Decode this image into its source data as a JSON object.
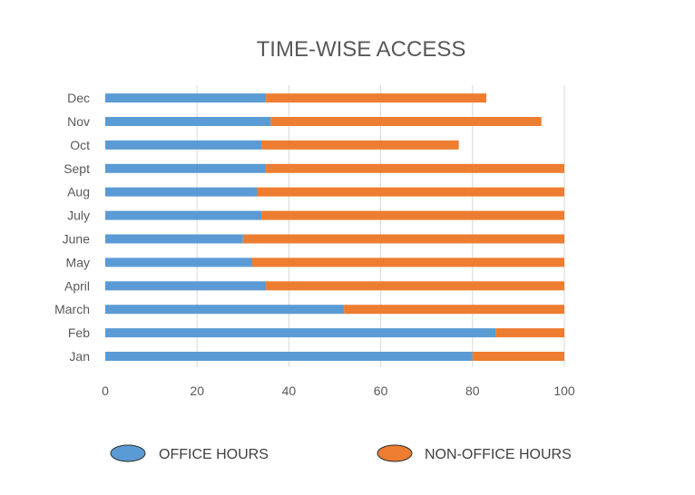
{
  "chart_data": {
    "type": "bar",
    "orientation": "horizontal",
    "stacked": true,
    "title": "TIME-WISE ACCESS",
    "xlabel": "",
    "ylabel": "",
    "categories": [
      "Jan",
      "Feb",
      "March",
      "April",
      "May",
      "June",
      "July",
      "Aug",
      "Sept",
      "Oct",
      "Nov",
      "Dec"
    ],
    "series": [
      {
        "name": "OFFICE HOURS",
        "color": "#5b9bd5",
        "values": [
          80,
          85,
          52,
          35,
          32,
          30,
          34,
          33,
          35,
          34,
          36,
          35
        ]
      },
      {
        "name": "NON-OFFICE HOURS",
        "color": "#ed7d31",
        "values": [
          20,
          15,
          48,
          65,
          68,
          70,
          66,
          67,
          65,
          43,
          59,
          48
        ]
      }
    ],
    "xlim": [
      0,
      100
    ],
    "xticks": [
      "0",
      "20",
      "40",
      "60",
      "80",
      "100"
    ],
    "grid": "vertical",
    "legend": "bottom"
  }
}
